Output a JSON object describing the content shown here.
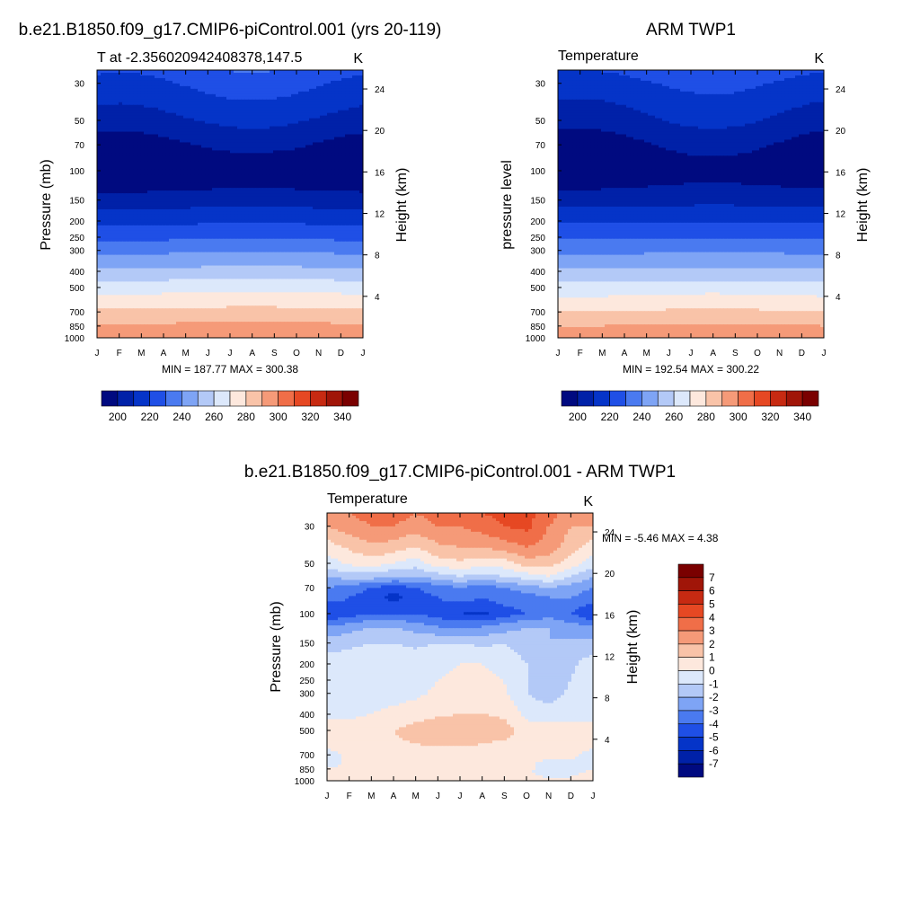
{
  "chart_data": [
    {
      "type": "heatmap",
      "panel_title": "b.e21.B1850.f09_g17.CMIP6-piControl.001 (yrs 20-119)",
      "subtitle": "T at -2.356020942408378,147.5",
      "units": "K",
      "ylabel": "Pressure (mb)",
      "ylabel_right": "Height (km)",
      "x_ticks": [
        "J",
        "F",
        "M",
        "A",
        "M",
        "J",
        "J",
        "A",
        "S",
        "O",
        "N",
        "D",
        "J"
      ],
      "pressure_ticks": [
        30,
        50,
        70,
        100,
        150,
        200,
        250,
        300,
        400,
        500,
        700,
        850,
        1000
      ],
      "height_ticks": [
        4,
        8,
        12,
        16,
        20,
        24
      ],
      "ylim": [
        1000,
        25
      ],
      "stats": "MIN = 187.77 MAX = 300.38",
      "colorbar": {
        "labels": [
          "200",
          "220",
          "240",
          "260",
          "280",
          "300",
          "320",
          "340"
        ],
        "levels": [
          200,
          210,
          220,
          230,
          240,
          250,
          260,
          270,
          280,
          290,
          300,
          310,
          320,
          330,
          340
        ],
        "colors": [
          "#000a80",
          "#0021a8",
          "#0534c8",
          "#1f4fe6",
          "#4a7af0",
          "#7ea4f5",
          "#b3c9f7",
          "#dce8fb",
          "#fde8dd",
          "#f9c3a8",
          "#f59a78",
          "#f06e48",
          "#e64823",
          "#c72a12",
          "#a01508",
          "#7a0000"
        ]
      },
      "profile": {
        "pressure": [
          25,
          30,
          50,
          70,
          100,
          150,
          200,
          250,
          300,
          400,
          500,
          700,
          850,
          1000
        ],
        "temperature": [
          226,
          221,
          209,
          199,
          190,
          205,
          218,
          228,
          238,
          253,
          266,
          283,
          292,
          300
        ],
        "seasonal_amplitude": [
          5,
          5,
          4,
          5,
          1,
          1,
          0.5,
          0.5,
          0.5,
          0.5,
          0.5,
          0.5,
          0.5,
          0.3
        ]
      }
    },
    {
      "type": "heatmap",
      "panel_title": "ARM TWP1",
      "subtitle": "Temperature",
      "units": "K",
      "ylabel": "pressure level",
      "ylabel_right": "Height (km)",
      "x_ticks": [
        "J",
        "F",
        "M",
        "A",
        "M",
        "J",
        "J",
        "A",
        "S",
        "O",
        "N",
        "D",
        "J"
      ],
      "pressure_ticks": [
        30,
        50,
        70,
        100,
        150,
        200,
        250,
        300,
        400,
        500,
        700,
        850,
        1000
      ],
      "height_ticks": [
        4,
        8,
        12,
        16,
        20,
        24
      ],
      "ylim": [
        1000,
        25
      ],
      "stats": "MIN = 192.54 MAX = 300.22",
      "colorbar": {
        "labels": [
          "200",
          "220",
          "240",
          "260",
          "280",
          "300",
          "320",
          "340"
        ],
        "levels": [
          200,
          210,
          220,
          230,
          240,
          250,
          260,
          270,
          280,
          290,
          300,
          310,
          320,
          330,
          340
        ],
        "colors": [
          "#000a80",
          "#0021a8",
          "#0534c8",
          "#1f4fe6",
          "#4a7af0",
          "#7ea4f5",
          "#b3c9f7",
          "#dce8fb",
          "#fde8dd",
          "#f9c3a8",
          "#f59a78",
          "#f06e48",
          "#e64823",
          "#c72a12",
          "#a01508",
          "#7a0000"
        ]
      },
      "profile": {
        "pressure": [
          25,
          30,
          50,
          70,
          100,
          150,
          200,
          250,
          300,
          400,
          500,
          700,
          850,
          1000
        ],
        "temperature": [
          224,
          219,
          208,
          199,
          193,
          206,
          219,
          229,
          238,
          252,
          265,
          281,
          291,
          299
        ],
        "seasonal_amplitude": [
          4,
          4,
          5,
          5,
          2,
          1,
          0.5,
          0.5,
          0.5,
          0.5,
          1,
          1,
          1,
          0.5
        ]
      }
    },
    {
      "type": "heatmap",
      "panel_title": "b.e21.B1850.f09_g17.CMIP6-piControl.001 - ARM TWP1",
      "subtitle": "Temperature",
      "units": "K",
      "ylabel": "Pressure (mb)",
      "ylabel_right": "Height (km)",
      "x_ticks": [
        "J",
        "F",
        "M",
        "A",
        "M",
        "J",
        "J",
        "A",
        "S",
        "O",
        "N",
        "D",
        "J"
      ],
      "pressure_ticks": [
        30,
        50,
        70,
        100,
        150,
        200,
        250,
        300,
        400,
        500,
        700,
        850,
        1000
      ],
      "height_ticks": [
        4,
        8,
        12,
        16,
        20,
        24
      ],
      "ylim": [
        1000,
        25
      ],
      "stats": "MIN =  -5.46 MAX =   4.38",
      "colorbar": {
        "labels": [
          "7",
          "6",
          "5",
          "4",
          "3",
          "2",
          "1",
          "0",
          "-1",
          "-2",
          "-3",
          "-4",
          "-5",
          "-6",
          "-7"
        ],
        "levels": [
          -7,
          -6,
          -5,
          -4,
          -3,
          -2,
          -1,
          0,
          1,
          2,
          3,
          4,
          5,
          6,
          7
        ],
        "colors": [
          "#000a80",
          "#0021a8",
          "#0534c8",
          "#1f4fe6",
          "#4a7af0",
          "#7ea4f5",
          "#b3c9f7",
          "#dce8fb",
          "#fde8dd",
          "#f9c3a8",
          "#f59a78",
          "#f06e48",
          "#e64823",
          "#c72a12",
          "#a01508",
          "#7a0000"
        ]
      },
      "difference_field": {
        "pressure": [
          25,
          30,
          40,
          50,
          60,
          70,
          80,
          100,
          120,
          150,
          200,
          300,
          400,
          500,
          600,
          700,
          800,
          900,
          1000
        ],
        "months": [
          "J",
          "F",
          "M",
          "A",
          "M",
          "J",
          "J",
          "A",
          "S",
          "O",
          "N",
          "D",
          "J"
        ],
        "values": [
          [
            2.5,
            3.0,
            3.5,
            3.5,
            3.0,
            3.5,
            3.5,
            4.0,
            4.3,
            4.4,
            3.5,
            2.5,
            2.5
          ],
          [
            2.0,
            2.5,
            3.0,
            3.0,
            2.5,
            3.0,
            3.0,
            3.5,
            4.0,
            4.3,
            3.0,
            2.0,
            2.0
          ],
          [
            0.5,
            1.2,
            1.8,
            1.5,
            1.0,
            1.8,
            2.0,
            2.0,
            2.5,
            3.0,
            2.5,
            1.5,
            0.5
          ],
          [
            -0.5,
            0.2,
            0.5,
            0.0,
            -0.5,
            0.5,
            0.8,
            0.5,
            0.5,
            1.5,
            1.5,
            0.5,
            -0.5
          ],
          [
            -2.0,
            -1.5,
            -1.5,
            -2.0,
            -2.0,
            -1.5,
            -1.0,
            -1.5,
            -1.0,
            -0.5,
            0.0,
            -1.0,
            -2.0
          ],
          [
            -3.0,
            -3.5,
            -4.0,
            -4.5,
            -4.0,
            -3.5,
            -3.0,
            -3.5,
            -3.0,
            -2.5,
            -2.0,
            -2.5,
            -3.0
          ],
          [
            -3.5,
            -4.0,
            -4.5,
            -5.46,
            -4.5,
            -4.0,
            -3.5,
            -4.0,
            -3.5,
            -3.5,
            -3.0,
            -3.0,
            -3.5
          ],
          [
            -5.0,
            -4.5,
            -4.0,
            -4.0,
            -4.0,
            -4.5,
            -5.0,
            -5.2,
            -4.5,
            -4.0,
            -3.5,
            -4.0,
            -5.0
          ],
          [
            -3.0,
            -2.5,
            -2.0,
            -2.0,
            -2.5,
            -3.0,
            -3.0,
            -3.0,
            -2.5,
            -2.0,
            -2.0,
            -2.5,
            -3.0
          ],
          [
            -1.5,
            -1.2,
            -1.0,
            -1.0,
            -1.2,
            -1.0,
            -1.0,
            -1.2,
            -1.0,
            -1.5,
            -2.0,
            -1.8,
            -1.5
          ],
          [
            -0.5,
            -0.5,
            -0.5,
            -0.5,
            -0.5,
            -0.3,
            0.0,
            0.0,
            -0.3,
            -1.0,
            -1.5,
            -1.2,
            -0.5
          ],
          [
            -0.5,
            -0.5,
            -0.3,
            -0.3,
            -0.2,
            0.2,
            0.5,
            0.5,
            0.2,
            -1.0,
            -1.5,
            -0.8,
            -0.5
          ],
          [
            -0.3,
            -0.3,
            0.0,
            0.2,
            0.5,
            0.8,
            1.0,
            1.0,
            0.8,
            -0.3,
            -0.5,
            -0.5,
            -0.3
          ],
          [
            0.5,
            0.5,
            1.0,
            1.0,
            1.5,
            1.8,
            2.0,
            1.8,
            1.5,
            0.5,
            0.5,
            0.5,
            0.5
          ],
          [
            0.5,
            0.5,
            0.8,
            0.8,
            1.0,
            1.2,
            1.2,
            1.0,
            0.8,
            0.3,
            0.5,
            0.5,
            0.5
          ],
          [
            -0.5,
            0.3,
            0.5,
            0.5,
            0.5,
            0.5,
            0.5,
            0.5,
            0.5,
            0.3,
            0.3,
            0.3,
            -0.5
          ],
          [
            -0.3,
            0.2,
            0.3,
            0.3,
            0.3,
            0.3,
            0.3,
            0.3,
            0.3,
            0.2,
            -0.3,
            -0.3,
            -0.3
          ],
          [
            0.3,
            0.3,
            0.5,
            0.5,
            0.5,
            0.5,
            0.5,
            0.3,
            0.3,
            0.2,
            -0.5,
            -0.3,
            0.3
          ],
          [
            0.5,
            0.5,
            0.8,
            0.8,
            0.8,
            0.5,
            1.0,
            0.8,
            0.5,
            0.5,
            0.3,
            0.3,
            0.5
          ]
        ]
      }
    }
  ]
}
